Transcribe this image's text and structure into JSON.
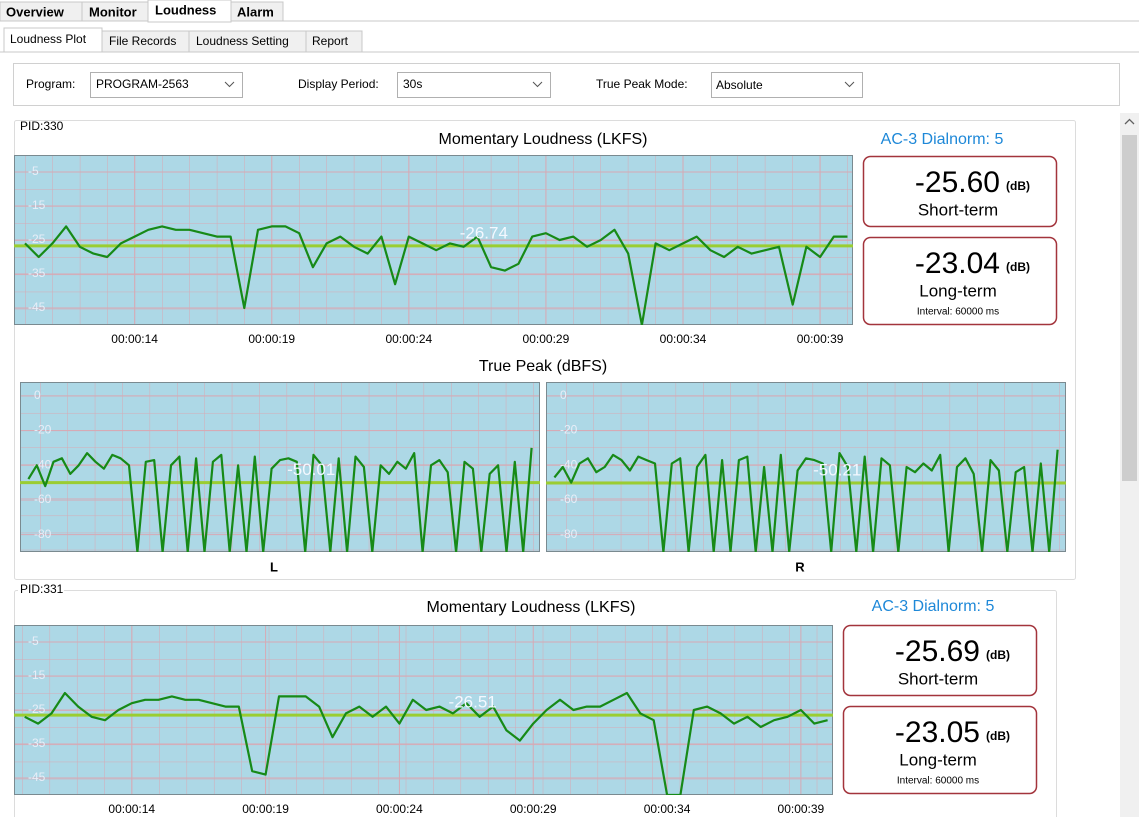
{
  "tabs": [
    "Overview",
    "Monitor",
    "Loudness",
    "Alarm"
  ],
  "sub_tabs": [
    "Loudness Plot",
    "File Records",
    "Loudness Setting",
    "Report"
  ],
  "toolbar": {
    "program_label": "Program:",
    "program": "PROGRAM-2563",
    "period_label": "Display Period:",
    "period": "30s",
    "peak_mode_label": "True Peak Mode:",
    "peak_mode": "Absolute"
  },
  "panels": [
    {
      "title": "PID:330",
      "dialnorm": "AC-3 Dialnorm: 5",
      "true_peak_title": "True Peak (dBFS)",
      "short_term": {
        "value": "-25.60",
        "unit": "(dB)",
        "label": "Short-term"
      },
      "long_term": {
        "value": "-23.04",
        "unit": "(dB)",
        "label": "Long-term",
        "interval": "Interval: 60000 ms"
      }
    },
    {
      "title": "PID:331",
      "dialnorm": "AC-3 Dialnorm: 5",
      "short_term": {
        "value": "-25.69",
        "unit": "(dB)",
        "label": "Short-term"
      },
      "long_term": {
        "value": "-23.05",
        "unit": "(dB)",
        "label": "Long-term",
        "interval": "Interval: 60000 ms"
      }
    }
  ],
  "chart_data": [
    {
      "type": "line",
      "title": "Momentary Loudness (LKFS)",
      "color": "#178a17",
      "mean": -26.74,
      "mean_color": "#9acd32",
      "values": [
        -26,
        -30,
        -26,
        -21,
        -27,
        -29,
        -30,
        -26,
        -24,
        -22,
        -21,
        -22,
        -22,
        -23,
        -24,
        -24,
        -45,
        -22,
        -21,
        -21,
        -23,
        -33,
        -26,
        -24,
        -27,
        -29,
        -24,
        -38,
        -24,
        -26,
        -28,
        -26,
        -27,
        -24,
        -33,
        -34,
        -32,
        -24,
        -23,
        -25,
        -24,
        -27,
        -25,
        -22,
        -29,
        -50,
        -26,
        -28,
        -26,
        -24,
        -28,
        -30,
        -27,
        -29,
        -28,
        -27,
        -44,
        -27,
        -30,
        -24,
        -24
      ],
      "ylim": [
        -50,
        0
      ],
      "yticks": [
        -5,
        -15,
        -25,
        -35,
        -45
      ],
      "xlim": [
        -0.8,
        60.4
      ],
      "xticks": [
        {
          "value": 8,
          "label": "00:00:14"
        },
        {
          "value": 18,
          "label": "00:00:19"
        },
        {
          "value": 28,
          "label": "00:00:24"
        },
        {
          "value": 38,
          "label": "00:00:29"
        },
        {
          "value": 48,
          "label": "00:00:34"
        },
        {
          "value": 58,
          "label": "00:00:39"
        }
      ]
    },
    {
      "type": "line",
      "xlabel": "L",
      "color": "#178a17",
      "mean": -50.01,
      "mean_color": "#9acd32",
      "values": [
        -48,
        -40,
        -52,
        -38,
        -36,
        -45,
        -40,
        -33,
        -38,
        -42,
        -34,
        -36,
        -40,
        -90,
        -38,
        -37,
        -90,
        -40,
        -35,
        -90,
        -36,
        -90,
        -38,
        -34,
        -90,
        -40,
        -90,
        -35,
        -90,
        -42,
        -37,
        -36,
        -38,
        -90,
        -34,
        -40,
        -90,
        -36,
        -90,
        -35,
        -41,
        -90,
        -40,
        -45,
        -38,
        -42,
        -33,
        -90,
        -40,
        -37,
        -44,
        -90,
        -38,
        -42,
        -90,
        -45,
        -40,
        -90,
        -38,
        -90,
        -30
      ],
      "ylim": [
        -90,
        8
      ],
      "yticks": [
        0,
        -20,
        -40,
        -60,
        -80
      ],
      "xlim": [
        -1,
        61
      ]
    },
    {
      "type": "line",
      "xlabel": "R",
      "color": "#178a17",
      "mean": -50.21,
      "mean_color": "#9acd32",
      "values": [
        -47,
        -41,
        -50,
        -39,
        -36,
        -44,
        -41,
        -34,
        -37,
        -43,
        -35,
        -37,
        -39,
        -90,
        -39,
        -36,
        -90,
        -41,
        -34,
        -90,
        -37,
        -90,
        -37,
        -35,
        -90,
        -41,
        -90,
        -34,
        -90,
        -43,
        -36,
        -37,
        -39,
        -90,
        -33,
        -41,
        -90,
        -35,
        -90,
        -36,
        -40,
        -90,
        -41,
        -44,
        -39,
        -43,
        -34,
        -90,
        -41,
        -36,
        -45,
        -90,
        -37,
        -43,
        -90,
        -44,
        -41,
        -90,
        -39,
        -90,
        -31
      ],
      "ylim": [
        -90,
        8
      ],
      "yticks": [
        0,
        -20,
        -40,
        -60,
        -80
      ],
      "xlim": [
        -1,
        61
      ]
    },
    {
      "type": "line",
      "title": "Momentary Loudness (LKFS)",
      "color": "#178a17",
      "mean": -26.51,
      "mean_color": "#9acd32",
      "values": [
        -27,
        -29,
        -26,
        -20,
        -24,
        -27,
        -28,
        -25,
        -23,
        -22,
        -22,
        -21,
        -22,
        -22,
        -23,
        -24,
        -24,
        -43,
        -44,
        -21,
        -21,
        -21,
        -24,
        -33,
        -26,
        -24,
        -27,
        -24,
        -29,
        -22,
        -25,
        -24,
        -26,
        -23,
        -27,
        -24,
        -31,
        -34,
        -29,
        -25,
        -22,
        -25,
        -24,
        -24,
        -22,
        -20,
        -26,
        -28,
        -50,
        -50,
        -25,
        -24,
        -26,
        -29,
        -27,
        -30,
        -28,
        -27,
        -25,
        -29,
        -28
      ],
      "ylim": [
        -50,
        0
      ],
      "yticks": [
        -5,
        -15,
        -25,
        -35,
        -45
      ],
      "xlim": [
        -0.8,
        60.4
      ],
      "xticks": [
        {
          "value": 8,
          "label": "00:00:14"
        },
        {
          "value": 18,
          "label": "00:00:19"
        },
        {
          "value": 28,
          "label": "00:00:24"
        },
        {
          "value": 38,
          "label": "00:00:29"
        },
        {
          "value": 48,
          "label": "00:00:34"
        },
        {
          "value": 58,
          "label": "00:00:39"
        }
      ]
    }
  ]
}
